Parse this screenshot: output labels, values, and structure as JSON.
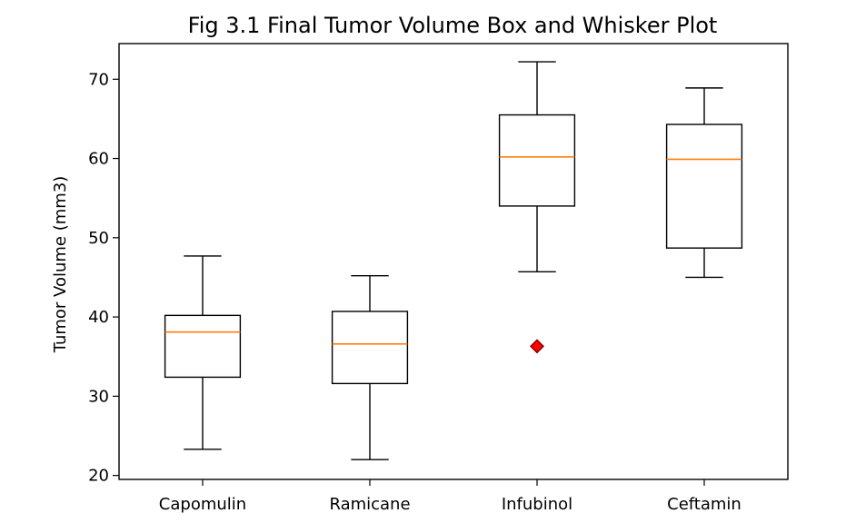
{
  "chart_data": {
    "type": "box",
    "title": "Fig 3.1 Final Tumor Volume Box and Whisker Plot",
    "xlabel": "",
    "ylabel": "Tumor Volume (mm3)",
    "ylim": [
      19.5,
      74.5
    ],
    "yticks": [
      20,
      30,
      40,
      50,
      60,
      70
    ],
    "grid": false,
    "categories": [
      "Capomulin",
      "Ramicane",
      "Infubinol",
      "Ceftamin"
    ],
    "boxes": [
      {
        "category": "Capomulin",
        "whisker_low": 23.3,
        "q1": 32.4,
        "median": 38.1,
        "q3": 40.2,
        "whisker_high": 47.7,
        "outliers": []
      },
      {
        "category": "Ramicane",
        "whisker_low": 22.0,
        "q1": 31.6,
        "median": 36.6,
        "q3": 40.7,
        "whisker_high": 45.2,
        "outliers": []
      },
      {
        "category": "Infubinol",
        "whisker_low": 45.7,
        "q1": 54.0,
        "median": 60.2,
        "q3": 65.5,
        "whisker_high": 72.2,
        "outliers": [
          36.3
        ]
      },
      {
        "category": "Ceftamin",
        "whisker_low": 45.0,
        "q1": 48.7,
        "median": 59.9,
        "q3": 64.3,
        "whisker_high": 68.9,
        "outliers": []
      }
    ],
    "colors": {
      "box": "#000000",
      "median": "#ff7f0e",
      "outlier_fill": "#ff0000",
      "outlier_edge": "#800000"
    },
    "outlier_marker": "diamond"
  }
}
